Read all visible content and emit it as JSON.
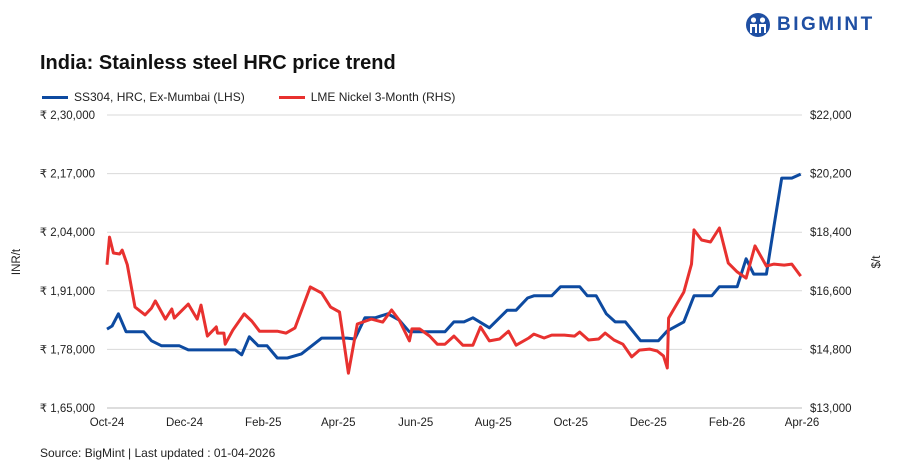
{
  "brand": {
    "name": "BIGMINT",
    "color": "#1f4fa3"
  },
  "source": "Source: BigMint | Last updated : 01-04-2026",
  "chart_data": {
    "type": "line",
    "title": "India: Stainless steel HRC price trend",
    "xlim": [
      "2024-10-01",
      "2026-04-01"
    ],
    "x_ticks": [
      {
        "label": "Oct-24",
        "date": "2024-10-01"
      },
      {
        "label": "Dec-24",
        "date": "2024-12-01"
      },
      {
        "label": "Feb-25",
        "date": "2025-02-01"
      },
      {
        "label": "Apr-25",
        "date": "2025-04-01"
      },
      {
        "label": "Jun-25",
        "date": "2025-06-01"
      },
      {
        "label": "Aug-25",
        "date": "2025-08-01"
      },
      {
        "label": "Oct-25",
        "date": "2025-10-01"
      },
      {
        "label": "Dec-25",
        "date": "2025-12-01"
      },
      {
        "label": "Feb-26",
        "date": "2026-02-01"
      },
      {
        "label": "Apr-26",
        "date": "2026-04-01"
      }
    ],
    "y_left": {
      "label": "INR/t",
      "lim": [
        165000,
        230000
      ],
      "ticks": [
        "₹ 1,65,000",
        "₹ 1,78,000",
        "₹ 1,91,000",
        "₹ 2,04,000",
        "₹ 2,17,000",
        "₹ 2,30,000"
      ]
    },
    "y_right": {
      "label": "$/t",
      "lim": [
        13000,
        22000
      ],
      "ticks": [
        "$13,000",
        "$14,800",
        "$16,600",
        "$18,400",
        "$20,200",
        "$22,000"
      ]
    },
    "grid": "horizontal",
    "legend": "top-left",
    "series": [
      {
        "name": "SS304, HRC, Ex-Mumbai (LHS)",
        "axis": "left",
        "color": "#0d4aa0",
        "points": [
          [
            "2024-10-01",
            182500
          ],
          [
            "2024-10-05",
            183200
          ],
          [
            "2024-10-10",
            185900
          ],
          [
            "2024-10-16",
            181900
          ],
          [
            "2024-10-30",
            181900
          ],
          [
            "2024-11-05",
            179900
          ],
          [
            "2024-11-13",
            178800
          ],
          [
            "2024-11-27",
            178800
          ],
          [
            "2024-12-04",
            177900
          ],
          [
            "2025-01-10",
            177900
          ],
          [
            "2025-01-15",
            176800
          ],
          [
            "2025-01-21",
            180800
          ],
          [
            "2025-01-28",
            178800
          ],
          [
            "2025-02-04",
            178800
          ],
          [
            "2025-02-12",
            176100
          ],
          [
            "2025-02-20",
            176100
          ],
          [
            "2025-03-03",
            177000
          ],
          [
            "2025-03-19",
            180500
          ],
          [
            "2025-04-08",
            180500
          ],
          [
            "2025-04-14",
            180300
          ],
          [
            "2025-04-22",
            185000
          ],
          [
            "2025-04-30",
            185000
          ],
          [
            "2025-05-10",
            185900
          ],
          [
            "2025-05-19",
            184500
          ],
          [
            "2025-05-27",
            181900
          ],
          [
            "2025-06-24",
            181900
          ],
          [
            "2025-07-01",
            184100
          ],
          [
            "2025-07-09",
            184100
          ],
          [
            "2025-07-16",
            185000
          ],
          [
            "2025-07-29",
            182800
          ],
          [
            "2025-08-12",
            186700
          ],
          [
            "2025-08-19",
            186700
          ],
          [
            "2025-08-28",
            189400
          ],
          [
            "2025-09-02",
            189900
          ],
          [
            "2025-09-16",
            189900
          ],
          [
            "2025-09-23",
            191900
          ],
          [
            "2025-10-08",
            191900
          ],
          [
            "2025-10-14",
            189900
          ],
          [
            "2025-10-21",
            189900
          ],
          [
            "2025-10-29",
            185900
          ],
          [
            "2025-11-05",
            184100
          ],
          [
            "2025-11-13",
            184100
          ],
          [
            "2025-11-25",
            179900
          ],
          [
            "2025-12-09",
            179900
          ],
          [
            "2025-12-16",
            182100
          ],
          [
            "2025-12-29",
            184100
          ],
          [
            "2026-01-06",
            189900
          ],
          [
            "2026-01-20",
            189900
          ],
          [
            "2026-01-26",
            191900
          ],
          [
            "2026-02-09",
            191900
          ],
          [
            "2026-02-16",
            198100
          ],
          [
            "2026-02-22",
            194700
          ],
          [
            "2026-03-04",
            194700
          ],
          [
            "2026-03-10",
            205400
          ],
          [
            "2026-03-16",
            216000
          ],
          [
            "2026-03-24",
            216000
          ],
          [
            "2026-03-31",
            216900
          ]
        ]
      },
      {
        "name": "LME Nickel 3-Month (RHS)",
        "axis": "right",
        "color": "#e8312f",
        "points": [
          [
            "2024-10-01",
            17400
          ],
          [
            "2024-10-03",
            18250
          ],
          [
            "2024-10-06",
            17760
          ],
          [
            "2024-10-11",
            17730
          ],
          [
            "2024-10-13",
            17850
          ],
          [
            "2024-10-17",
            17400
          ],
          [
            "2024-10-23",
            16100
          ],
          [
            "2024-10-31",
            15860
          ],
          [
            "2024-11-05",
            16070
          ],
          [
            "2024-11-08",
            16290
          ],
          [
            "2024-11-16",
            15730
          ],
          [
            "2024-11-21",
            16040
          ],
          [
            "2024-11-23",
            15760
          ],
          [
            "2024-12-04",
            16190
          ],
          [
            "2024-12-11",
            15730
          ],
          [
            "2024-12-14",
            16160
          ],
          [
            "2024-12-19",
            15210
          ],
          [
            "2024-12-26",
            15490
          ],
          [
            "2024-12-27",
            15300
          ],
          [
            "2025-01-01",
            15300
          ],
          [
            "2025-01-02",
            14960
          ],
          [
            "2025-01-08",
            15390
          ],
          [
            "2025-01-17",
            15890
          ],
          [
            "2025-01-23",
            15670
          ],
          [
            "2025-01-29",
            15360
          ],
          [
            "2025-02-12",
            15360
          ],
          [
            "2025-02-19",
            15300
          ],
          [
            "2025-02-26",
            15460
          ],
          [
            "2025-03-10",
            16720
          ],
          [
            "2025-03-19",
            16530
          ],
          [
            "2025-03-26",
            16100
          ],
          [
            "2025-04-02",
            15950
          ],
          [
            "2025-04-09",
            14070
          ],
          [
            "2025-04-16",
            15580
          ],
          [
            "2025-04-27",
            15730
          ],
          [
            "2025-05-06",
            15640
          ],
          [
            "2025-05-13",
            16010
          ],
          [
            "2025-05-19",
            15700
          ],
          [
            "2025-05-27",
            15060
          ],
          [
            "2025-05-29",
            15430
          ],
          [
            "2025-06-04",
            15430
          ],
          [
            "2025-06-12",
            15210
          ],
          [
            "2025-06-18",
            14960
          ],
          [
            "2025-06-24",
            14960
          ],
          [
            "2025-07-01",
            15210
          ],
          [
            "2025-07-08",
            14930
          ],
          [
            "2025-07-16",
            14930
          ],
          [
            "2025-07-22",
            15490
          ],
          [
            "2025-07-29",
            15060
          ],
          [
            "2025-08-06",
            15120
          ],
          [
            "2025-08-13",
            15360
          ],
          [
            "2025-08-19",
            14930
          ],
          [
            "2025-08-29",
            15150
          ],
          [
            "2025-09-02",
            15270
          ],
          [
            "2025-09-10",
            15150
          ],
          [
            "2025-09-16",
            15240
          ],
          [
            "2025-09-26",
            15240
          ],
          [
            "2025-10-04",
            15210
          ],
          [
            "2025-10-08",
            15330
          ],
          [
            "2025-10-15",
            15090
          ],
          [
            "2025-10-23",
            15120
          ],
          [
            "2025-10-28",
            15300
          ],
          [
            "2025-11-04",
            15090
          ],
          [
            "2025-11-11",
            14960
          ],
          [
            "2025-11-18",
            14570
          ],
          [
            "2025-11-24",
            14780
          ],
          [
            "2025-12-02",
            14810
          ],
          [
            "2025-12-08",
            14750
          ],
          [
            "2025-12-13",
            14600
          ],
          [
            "2025-12-16",
            14230
          ],
          [
            "2025-12-17",
            15760
          ],
          [
            "2025-12-29",
            16560
          ],
          [
            "2026-01-04",
            17420
          ],
          [
            "2026-01-06",
            18470
          ],
          [
            "2026-01-12",
            18160
          ],
          [
            "2026-01-19",
            18100
          ],
          [
            "2026-01-26",
            18530
          ],
          [
            "2026-02-02",
            17450
          ],
          [
            "2026-02-09",
            17180
          ],
          [
            "2026-02-16",
            16990
          ],
          [
            "2026-02-23",
            17980
          ],
          [
            "2026-03-04",
            17360
          ],
          [
            "2026-03-10",
            17420
          ],
          [
            "2026-03-18",
            17390
          ],
          [
            "2026-03-24",
            17420
          ],
          [
            "2026-03-31",
            17050
          ]
        ]
      }
    ]
  }
}
